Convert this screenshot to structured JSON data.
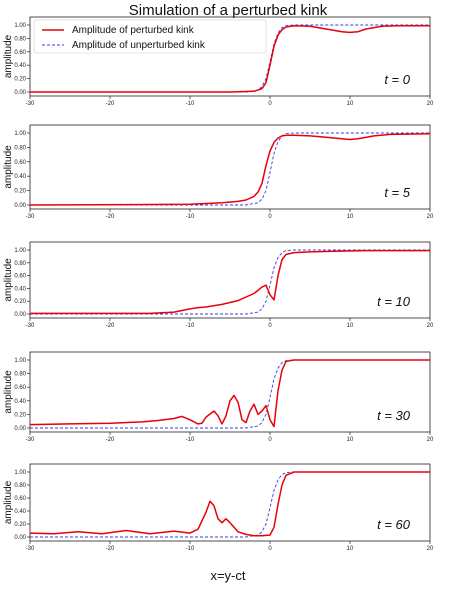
{
  "figure": {
    "title": "Simulation of a perturbed kink",
    "xlabel": "x=y-ct"
  },
  "colors": {
    "perturbed": "#e8000b",
    "unperturbed": "#3b3bdc",
    "axes": "#222222"
  },
  "chart_data": [
    {
      "type": "line",
      "time_label": "t = 0",
      "ylabel": "amplitude",
      "xlim": [
        -30,
        20
      ],
      "ylim": [
        0,
        1
      ],
      "xticks": [
        -30,
        -20,
        -10,
        0,
        10,
        20
      ],
      "yticks": [
        "0.00",
        "0.20",
        "0.40",
        "0.60",
        "0.80",
        "1.00"
      ],
      "legend": {
        "placement": "upper-left",
        "entries": [
          "Amplitude of perturbed kink",
          "Amplitude of unperturbed kink"
        ]
      },
      "series": [
        {
          "name": "Amplitude of perturbed kink",
          "style": "solid",
          "x": [
            -30,
            -5,
            -2,
            -1,
            -0.5,
            0,
            0.5,
            1,
            1.5,
            2,
            3,
            5,
            7,
            9,
            10,
            11,
            12,
            14,
            16,
            20
          ],
          "y": [
            0.0,
            0.0,
            0.01,
            0.05,
            0.14,
            0.4,
            0.68,
            0.85,
            0.93,
            0.97,
            0.99,
            0.98,
            0.94,
            0.9,
            0.89,
            0.9,
            0.94,
            0.98,
            0.99,
            0.99
          ]
        },
        {
          "name": "Amplitude of unperturbed kink",
          "style": "dashed",
          "x": [
            -30,
            -3,
            -1.5,
            -1,
            -0.5,
            0,
            0.5,
            1,
            1.5,
            2,
            3,
            20
          ],
          "y": [
            0.0,
            0.0,
            0.03,
            0.08,
            0.2,
            0.45,
            0.72,
            0.88,
            0.96,
            0.99,
            1.0,
            1.0
          ]
        }
      ]
    },
    {
      "type": "line",
      "time_label": "t = 5",
      "ylabel": "amplitude",
      "xlim": [
        -30,
        20
      ],
      "ylim": [
        0,
        1
      ],
      "xticks": [
        -30,
        -20,
        -10,
        0,
        10,
        20
      ],
      "yticks": [
        "0.00",
        "0.20",
        "0.40",
        "0.60",
        "0.80",
        "1.00"
      ],
      "series": [
        {
          "name": "Amplitude of perturbed kink",
          "style": "solid",
          "x": [
            -30,
            -10,
            -6,
            -4,
            -3,
            -2,
            -1.5,
            -1,
            -0.5,
            0,
            0.5,
            1,
            1.5,
            2,
            3,
            5,
            7,
            9,
            10,
            11,
            13,
            15,
            20
          ],
          "y": [
            0.0,
            0.01,
            0.03,
            0.05,
            0.07,
            0.12,
            0.18,
            0.3,
            0.55,
            0.75,
            0.87,
            0.93,
            0.96,
            0.97,
            0.97,
            0.96,
            0.94,
            0.92,
            0.91,
            0.92,
            0.96,
            0.98,
            0.99
          ]
        },
        {
          "name": "Amplitude of unperturbed kink",
          "style": "dashed",
          "x": [
            -30,
            -3,
            -1.5,
            -1,
            -0.5,
            0,
            0.5,
            1,
            1.5,
            2,
            3,
            20
          ],
          "y": [
            0.0,
            0.0,
            0.03,
            0.08,
            0.2,
            0.45,
            0.72,
            0.88,
            0.96,
            0.99,
            1.0,
            1.0
          ]
        }
      ]
    },
    {
      "type": "line",
      "time_label": "t = 10",
      "ylabel": "amplitude",
      "xlim": [
        -30,
        20
      ],
      "ylim": [
        0,
        1
      ],
      "xticks": [
        -30,
        -20,
        -10,
        0,
        10,
        20
      ],
      "yticks": [
        "0.00",
        "0.20",
        "0.40",
        "0.60",
        "0.80",
        "1.00"
      ],
      "series": [
        {
          "name": "Amplitude of perturbed kink",
          "style": "solid",
          "x": [
            -30,
            -15,
            -12,
            -10,
            -9,
            -8,
            -6,
            -4,
            -2,
            -1,
            -0.5,
            0,
            0.5,
            1,
            1.5,
            2,
            3,
            5,
            8,
            12,
            20
          ],
          "y": [
            0.01,
            0.01,
            0.03,
            0.08,
            0.1,
            0.11,
            0.15,
            0.21,
            0.32,
            0.42,
            0.45,
            0.3,
            0.22,
            0.6,
            0.85,
            0.93,
            0.96,
            0.97,
            0.98,
            0.99,
            0.99
          ]
        },
        {
          "name": "Amplitude of unperturbed kink",
          "style": "dashed",
          "x": [
            -30,
            -3,
            -1.5,
            -1,
            -0.5,
            0,
            0.5,
            1,
            1.5,
            2,
            3,
            20
          ],
          "y": [
            0.0,
            0.0,
            0.03,
            0.08,
            0.2,
            0.45,
            0.72,
            0.88,
            0.96,
            0.99,
            1.0,
            1.0
          ]
        }
      ]
    },
    {
      "type": "line",
      "time_label": "t = 30",
      "ylabel": "amplitude",
      "xlim": [
        -30,
        20
      ],
      "ylim": [
        0,
        1
      ],
      "xticks": [
        -30,
        -20,
        -10,
        0,
        10,
        20
      ],
      "yticks": [
        "0.00",
        "0.20",
        "0.40",
        "0.60",
        "0.80",
        "1.00"
      ],
      "series": [
        {
          "name": "Amplitude of perturbed kink",
          "style": "solid",
          "x": [
            -30,
            -25,
            -20,
            -16,
            -14,
            -12,
            -11,
            -10,
            -9,
            -8.5,
            -8,
            -7,
            -6.5,
            -6,
            -5.5,
            -5,
            -4.5,
            -4,
            -3.5,
            -3,
            -2.5,
            -2,
            -1.5,
            -1,
            -0.5,
            0,
            0.5,
            1,
            1.5,
            2,
            3,
            20
          ],
          "y": [
            0.05,
            0.06,
            0.07,
            0.09,
            0.11,
            0.14,
            0.17,
            0.12,
            0.06,
            0.07,
            0.16,
            0.25,
            0.18,
            0.06,
            0.18,
            0.4,
            0.48,
            0.38,
            0.12,
            0.08,
            0.25,
            0.35,
            0.2,
            0.25,
            0.33,
            0.12,
            0.02,
            0.55,
            0.85,
            0.98,
            1.0,
            1.0
          ]
        },
        {
          "name": "Amplitude of unperturbed kink",
          "style": "dashed",
          "x": [
            -30,
            -3,
            -1.5,
            -1,
            -0.5,
            0,
            0.5,
            1,
            1.5,
            2,
            3,
            20
          ],
          "y": [
            0.0,
            0.0,
            0.03,
            0.08,
            0.2,
            0.45,
            0.72,
            0.88,
            0.96,
            0.99,
            1.0,
            1.0
          ]
        }
      ]
    },
    {
      "type": "line",
      "time_label": "t = 60",
      "ylabel": "amplitude",
      "xlim": [
        -30,
        20
      ],
      "ylim": [
        0,
        1
      ],
      "xticks": [
        -30,
        -20,
        -10,
        0,
        10,
        20
      ],
      "yticks": [
        "0.00",
        "0.20",
        "0.40",
        "0.60",
        "0.80",
        "1.00"
      ],
      "series": [
        {
          "name": "Amplitude of perturbed kink",
          "style": "solid",
          "x": [
            -30,
            -27,
            -24,
            -21,
            -18,
            -15,
            -12,
            -10,
            -9,
            -8,
            -7.5,
            -7,
            -6.5,
            -6,
            -5.5,
            -5,
            -4,
            -3,
            -2,
            -1,
            0,
            0.5,
            1,
            1.5,
            2,
            3,
            20
          ],
          "y": [
            0.06,
            0.05,
            0.08,
            0.05,
            0.1,
            0.05,
            0.09,
            0.06,
            0.12,
            0.38,
            0.55,
            0.48,
            0.28,
            0.22,
            0.28,
            0.22,
            0.08,
            0.04,
            0.02,
            0.02,
            0.03,
            0.15,
            0.5,
            0.8,
            0.95,
            1.0,
            1.0
          ]
        },
        {
          "name": "Amplitude of unperturbed kink",
          "style": "dashed",
          "x": [
            -30,
            -3,
            -1.5,
            -1,
            -0.5,
            0,
            0.5,
            1,
            1.5,
            2,
            3,
            20
          ],
          "y": [
            0.0,
            0.0,
            0.03,
            0.08,
            0.2,
            0.45,
            0.72,
            0.88,
            0.96,
            0.99,
            1.0,
            1.0
          ]
        }
      ]
    }
  ]
}
